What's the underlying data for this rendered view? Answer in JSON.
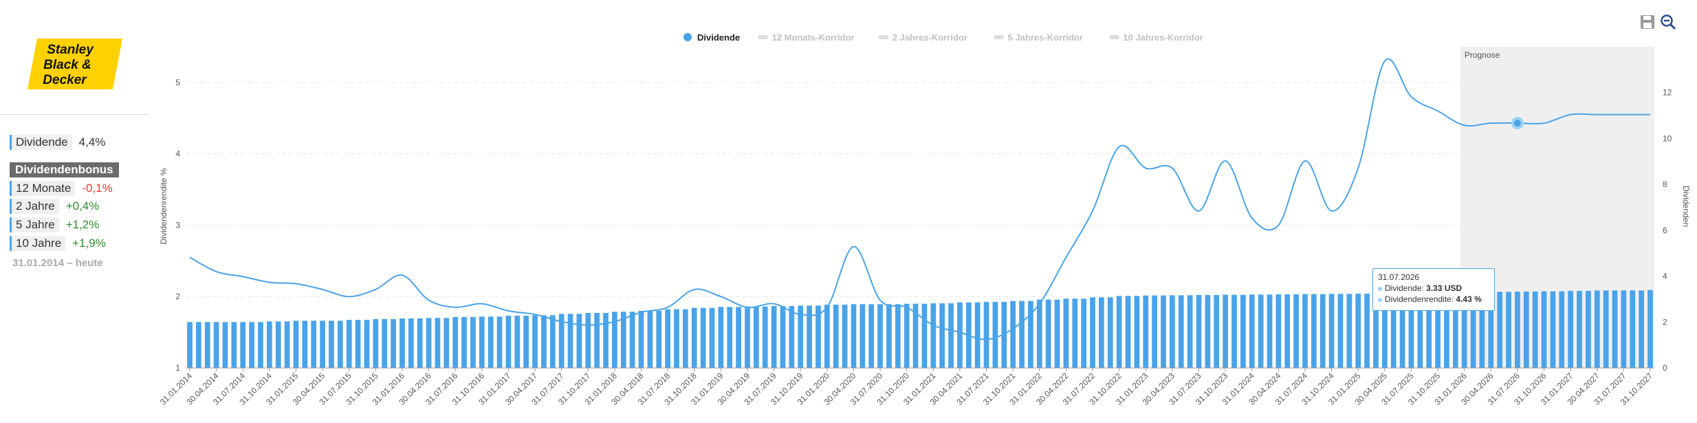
{
  "logo": {
    "lines": [
      "Stanley",
      "Black &",
      "Decker"
    ],
    "color": "#ffd100"
  },
  "sidebar": {
    "dividend": {
      "label": "Dividende",
      "value": "4,4%"
    },
    "bonus_title": "Dividendenbonus",
    "bonus_items": [
      {
        "label": "12 Monate",
        "value": "-0,1%",
        "trend": "neg"
      },
      {
        "label": "2 Jahre",
        "value": "+0,4%",
        "trend": "pos"
      },
      {
        "label": "5 Jahre",
        "value": "+1,2%",
        "trend": "pos"
      },
      {
        "label": "10 Jahre",
        "value": "+1,9%",
        "trend": "pos"
      }
    ],
    "range": "31.01.2014 – heute"
  },
  "toolbar": {
    "icons": [
      "save-icon",
      "zoom-out-icon"
    ]
  },
  "tooltip": {
    "date": "31.07.2026",
    "dividend_label": "Dividende:",
    "dividend_value": "3.33 USD",
    "yield_label": "Dividendenrendite:",
    "yield_value": "4.43 %"
  },
  "chart_data": {
    "type": "bar",
    "legend": [
      {
        "name": "Dividende",
        "active": true,
        "color": "#4aa3e8"
      },
      {
        "name": "12 Monats-Korridor",
        "active": false
      },
      {
        "name": "2 Jahres-Korridor",
        "active": false
      },
      {
        "name": "5 Jahres-Korridor",
        "active": false
      },
      {
        "name": "10 Jahres-Korridor",
        "active": false
      }
    ],
    "legend_placement": "top-center",
    "forecast_label": "Prognose",
    "forecast_start": "31.01.2026",
    "y_left_label": "Dividendenrendite %",
    "y_left_ticks": [
      1,
      2,
      3,
      4,
      5
    ],
    "y_left_range": [
      1,
      5.5
    ],
    "y_right_label": "Dividenden",
    "y_right_ticks": [
      0,
      2,
      4,
      6,
      8,
      10,
      12
    ],
    "y_right_range": [
      0,
      14
    ],
    "grid": true,
    "x_ticks": [
      "31.01.2014",
      "30.04.2014",
      "31.07.2014",
      "31.10.2014",
      "31.01.2015",
      "30.04.2015",
      "31.07.2015",
      "31.10.2015",
      "31.01.2016",
      "30.04.2016",
      "31.07.2016",
      "31.10.2016",
      "31.01.2017",
      "30.04.2017",
      "31.07.2017",
      "31.10.2017",
      "31.01.2018",
      "30.04.2018",
      "31.07.2018",
      "31.10.2018",
      "31.01.2019",
      "30.04.2019",
      "31.07.2019",
      "31.10.2019",
      "31.01.2020",
      "30.04.2020",
      "31.07.2020",
      "31.10.2020",
      "31.01.2021",
      "30.04.2021",
      "31.07.2021",
      "31.10.2021",
      "31.01.2022",
      "30.04.2022",
      "31.07.2022",
      "31.10.2022",
      "31.01.2023",
      "30.04.2023",
      "31.07.2023",
      "31.10.2023",
      "31.01.2024",
      "30.04.2024",
      "31.07.2024",
      "31.10.2024",
      "31.01.2025",
      "30.04.2025",
      "31.07.2025",
      "31.10.2025",
      "31.01.2026",
      "30.04.2026",
      "31.07.2026",
      "31.10.2026",
      "31.01.2027",
      "30.04.2027",
      "31.07.2027",
      "31.10.2027"
    ],
    "series": [
      {
        "name": "Dividende",
        "type": "bar",
        "axis": "right",
        "color": "#4aa3e8",
        "values": [
          2.0,
          2.0,
          2.0,
          2.03,
          2.06,
          2.06,
          2.1,
          2.13,
          2.16,
          2.18,
          2.22,
          2.24,
          2.28,
          2.3,
          2.36,
          2.4,
          2.45,
          2.49,
          2.56,
          2.62,
          2.66,
          2.68,
          2.7,
          2.72,
          2.76,
          2.78,
          2.78,
          2.8,
          2.82,
          2.86,
          2.88,
          2.92,
          2.98,
          3.02,
          3.08,
          3.14,
          3.16,
          3.17,
          3.18,
          3.19,
          3.2,
          3.21,
          3.22,
          3.23,
          3.24,
          3.26,
          3.28,
          3.3,
          3.3,
          3.32,
          3.33,
          3.34,
          3.36,
          3.38,
          3.38,
          3.4
        ]
      },
      {
        "name": "Dividendenrendite",
        "type": "line",
        "axis": "left",
        "color": "#4aa3e8",
        "values": [
          2.55,
          2.35,
          2.28,
          2.2,
          2.18,
          2.1,
          2.0,
          2.1,
          2.3,
          1.95,
          1.85,
          1.9,
          1.8,
          1.75,
          1.65,
          1.6,
          1.65,
          1.78,
          1.85,
          2.1,
          2.0,
          1.85,
          1.9,
          1.75,
          1.85,
          2.7,
          1.95,
          1.85,
          1.6,
          1.5,
          1.4,
          1.55,
          1.9,
          2.55,
          3.2,
          4.1,
          3.8,
          3.8,
          3.2,
          3.9,
          3.1,
          3.0,
          3.9,
          3.2,
          3.8,
          5.3,
          4.8,
          4.6,
          4.4,
          4.43,
          4.43,
          4.43,
          4.55,
          4.55,
          4.55,
          4.55
        ]
      }
    ]
  }
}
